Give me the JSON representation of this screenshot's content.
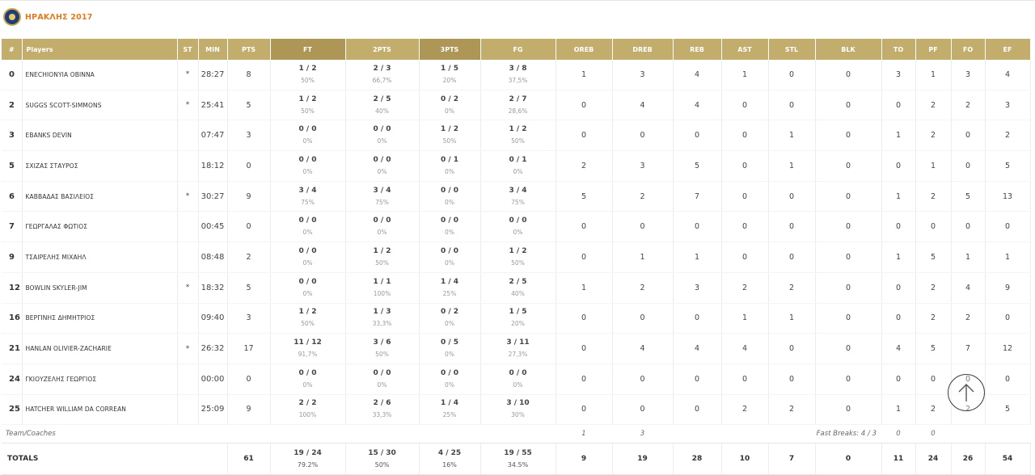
{
  "team": {
    "name": "ΗΡΑΚΛΗΣ 2017"
  },
  "columns": [
    "#",
    "Players",
    "ST",
    "MIN",
    "PTS",
    "FT",
    "2PTS",
    "3PTS",
    "FG",
    "OREB",
    "DREB",
    "REB",
    "AST",
    "STL",
    "BLK",
    "TO",
    "PF",
    "FO",
    "EF"
  ],
  "players": [
    {
      "num": "0",
      "name": "ENECHIONYIA OBINNA",
      "st": "*",
      "min": "28:27",
      "pts": "8",
      "ft": "1 / 2",
      "ft_pct": "50%",
      "p2": "2 / 3",
      "p2_pct": "66,7%",
      "p3": "1 / 5",
      "p3_pct": "20%",
      "fg": "3 / 8",
      "fg_pct": "37,5%",
      "oreb": "1",
      "dreb": "3",
      "reb": "4",
      "ast": "1",
      "stl": "0",
      "blk": "0",
      "to": "3",
      "pf": "1",
      "fo": "3",
      "ef": "4"
    },
    {
      "num": "2",
      "name": "SUGGS SCOTT-SIMMONS",
      "st": "*",
      "min": "25:41",
      "pts": "5",
      "ft": "1 / 2",
      "ft_pct": "50%",
      "p2": "2 / 5",
      "p2_pct": "40%",
      "p3": "0 / 2",
      "p3_pct": "0%",
      "fg": "2 / 7",
      "fg_pct": "28,6%",
      "oreb": "0",
      "dreb": "4",
      "reb": "4",
      "ast": "0",
      "stl": "0",
      "blk": "0",
      "to": "0",
      "pf": "2",
      "fo": "2",
      "ef": "3"
    },
    {
      "num": "3",
      "name": "EBANKS DEVIN",
      "st": "",
      "min": "07:47",
      "pts": "3",
      "ft": "0 / 0",
      "ft_pct": "0%",
      "p2": "0 / 0",
      "p2_pct": "0%",
      "p3": "1 / 2",
      "p3_pct": "50%",
      "fg": "1 / 2",
      "fg_pct": "50%",
      "oreb": "0",
      "dreb": "0",
      "reb": "0",
      "ast": "0",
      "stl": "1",
      "blk": "0",
      "to": "1",
      "pf": "2",
      "fo": "0",
      "ef": "2"
    },
    {
      "num": "5",
      "name": "ΣΧΙΖΑΣ ΣΤΑΥΡΟΣ",
      "st": "",
      "min": "18:12",
      "pts": "0",
      "ft": "0 / 0",
      "ft_pct": "0%",
      "p2": "0 / 0",
      "p2_pct": "0%",
      "p3": "0 / 1",
      "p3_pct": "0%",
      "fg": "0 / 1",
      "fg_pct": "0%",
      "oreb": "2",
      "dreb": "3",
      "reb": "5",
      "ast": "0",
      "stl": "1",
      "blk": "0",
      "to": "0",
      "pf": "1",
      "fo": "0",
      "ef": "5"
    },
    {
      "num": "6",
      "name": "ΚΑΒΒΑΔΑΣ ΒΑΣΙΛΕΙΟΣ",
      "st": "*",
      "min": "30:27",
      "pts": "9",
      "ft": "3 / 4",
      "ft_pct": "75%",
      "p2": "3 / 4",
      "p2_pct": "75%",
      "p3": "0 / 0",
      "p3_pct": "0%",
      "fg": "3 / 4",
      "fg_pct": "75%",
      "oreb": "5",
      "dreb": "2",
      "reb": "7",
      "ast": "0",
      "stl": "0",
      "blk": "0",
      "to": "1",
      "pf": "2",
      "fo": "5",
      "ef": "13"
    },
    {
      "num": "7",
      "name": "ΓΕΩΡΓΑΛΑΣ ΦΩΤΙΟΣ",
      "st": "",
      "min": "00:45",
      "pts": "0",
      "ft": "0 / 0",
      "ft_pct": "0%",
      "p2": "0 / 0",
      "p2_pct": "0%",
      "p3": "0 / 0",
      "p3_pct": "0%",
      "fg": "0 / 0",
      "fg_pct": "0%",
      "oreb": "0",
      "dreb": "0",
      "reb": "0",
      "ast": "0",
      "stl": "0",
      "blk": "0",
      "to": "0",
      "pf": "0",
      "fo": "0",
      "ef": "0"
    },
    {
      "num": "9",
      "name": "ΤΣΑΙΡΕΛΗΣ ΜΙΧΑΗΛ",
      "st": "",
      "min": "08:48",
      "pts": "2",
      "ft": "0 / 0",
      "ft_pct": "0%",
      "p2": "1 / 2",
      "p2_pct": "50%",
      "p3": "0 / 0",
      "p3_pct": "0%",
      "fg": "1 / 2",
      "fg_pct": "50%",
      "oreb": "0",
      "dreb": "1",
      "reb": "1",
      "ast": "0",
      "stl": "0",
      "blk": "0",
      "to": "1",
      "pf": "5",
      "fo": "1",
      "ef": "1"
    },
    {
      "num": "12",
      "name": "BOWLIN SKYLER-JIM",
      "st": "*",
      "min": "18:32",
      "pts": "5",
      "ft": "0 / 0",
      "ft_pct": "0%",
      "p2": "1 / 1",
      "p2_pct": "100%",
      "p3": "1 / 4",
      "p3_pct": "25%",
      "fg": "2 / 5",
      "fg_pct": "40%",
      "oreb": "1",
      "dreb": "2",
      "reb": "3",
      "ast": "2",
      "stl": "2",
      "blk": "0",
      "to": "0",
      "pf": "2",
      "fo": "4",
      "ef": "9"
    },
    {
      "num": "16",
      "name": "ΒΕΡΓΙΝΗΣ ΔΗΜΗΤΡΙΟΣ",
      "st": "",
      "min": "09:40",
      "pts": "3",
      "ft": "1 / 2",
      "ft_pct": "50%",
      "p2": "1 / 3",
      "p2_pct": "33,3%",
      "p3": "0 / 2",
      "p3_pct": "0%",
      "fg": "1 / 5",
      "fg_pct": "20%",
      "oreb": "0",
      "dreb": "0",
      "reb": "0",
      "ast": "1",
      "stl": "1",
      "blk": "0",
      "to": "0",
      "pf": "2",
      "fo": "2",
      "ef": "0"
    },
    {
      "num": "21",
      "name": "HANLAN OLIVIER-ZACHARIE",
      "st": "*",
      "min": "26:32",
      "pts": "17",
      "ft": "11 / 12",
      "ft_pct": "91,7%",
      "p2": "3 / 6",
      "p2_pct": "50%",
      "p3": "0 / 5",
      "p3_pct": "0%",
      "fg": "3 / 11",
      "fg_pct": "27,3%",
      "oreb": "0",
      "dreb": "4",
      "reb": "4",
      "ast": "4",
      "stl": "0",
      "blk": "0",
      "to": "4",
      "pf": "5",
      "fo": "7",
      "ef": "12"
    },
    {
      "num": "24",
      "name": "ΓΚΙΟΥΖΕΛΗΣ ΓΕΩΡΓΙΟΣ",
      "st": "",
      "min": "00:00",
      "pts": "0",
      "ft": "0 / 0",
      "ft_pct": "0%",
      "p2": "0 / 0",
      "p2_pct": "0%",
      "p3": "0 / 0",
      "p3_pct": "0%",
      "fg": "0 / 0",
      "fg_pct": "0%",
      "oreb": "0",
      "dreb": "0",
      "reb": "0",
      "ast": "0",
      "stl": "0",
      "blk": "0",
      "to": "0",
      "pf": "0",
      "fo": "0",
      "ef": "0"
    },
    {
      "num": "25",
      "name": "HATCHER WILLIAM DA CORREAN",
      "st": "",
      "min": "25:09",
      "pts": "9",
      "ft": "2 / 2",
      "ft_pct": "100%",
      "p2": "2 / 6",
      "p2_pct": "33,3%",
      "p3": "1 / 4",
      "p3_pct": "25%",
      "fg": "3 / 10",
      "fg_pct": "30%",
      "oreb": "0",
      "dreb": "0",
      "reb": "0",
      "ast": "2",
      "stl": "2",
      "blk": "0",
      "to": "1",
      "pf": "2",
      "fo": "2",
      "ef": "5"
    }
  ],
  "coaches": {
    "label": "Team/Coaches",
    "oreb": "1",
    "dreb": "3",
    "fast_breaks": "Fast Breaks:  4 / 3",
    "to": "0",
    "pf": "0"
  },
  "totals": {
    "label": "TOTALS",
    "pts": "61",
    "ft": "19 / 24",
    "ft_pct": "79.2%",
    "p2": "15 / 30",
    "p2_pct": "50%",
    "p3": "4 / 25",
    "p3_pct": "16%",
    "fg": "19 / 55",
    "fg_pct": "34.5%",
    "oreb": "9",
    "dreb": "19",
    "reb": "28",
    "ast": "10",
    "stl": "7",
    "blk": "0",
    "to": "11",
    "pf": "24",
    "fo": "26",
    "ef": "54"
  },
  "colors": {
    "header": "#c3ad6d",
    "header_alt": "#ad9656",
    "team_name": "#e07b1d"
  },
  "icons": {
    "team_logo": "team-crest-icon",
    "scroll_top": "arrow-up-icon"
  }
}
